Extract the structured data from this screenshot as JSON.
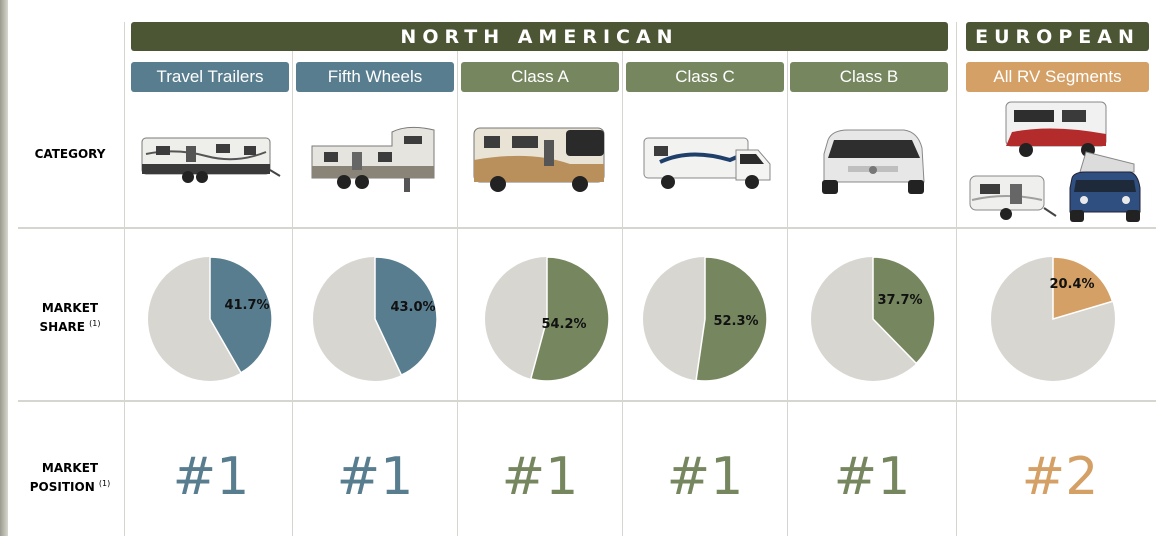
{
  "groups": {
    "north_american": "NORTH AMERICAN",
    "european": "EUROPEAN"
  },
  "row_labels": {
    "category": "CATEGORY",
    "market_share_1": "MARKET",
    "market_share_2": "SHARE",
    "market_position_1": "MARKET",
    "market_position_2": "POSITION",
    "footnote": "(1)"
  },
  "colors": {
    "blue": "#587d8f",
    "green": "#768760",
    "orange": "#d4a066",
    "dark_green": "#4c5635",
    "gray": "#d8d6d1"
  },
  "chart_data": {
    "type": "pie",
    "categories": [
      "Travel Trailers",
      "Fifth Wheels",
      "Class A",
      "Class C",
      "Class B",
      "All RV Segments"
    ],
    "values": [
      41.7,
      43.0,
      54.2,
      52.3,
      37.7,
      20.4
    ],
    "value_labels": [
      "41.7%",
      "43.0%",
      "54.2%",
      "52.3%",
      "37.7%",
      "20.4%"
    ],
    "market_position": [
      "#1",
      "#1",
      "#1",
      "#1",
      "#1",
      "#2"
    ],
    "segment_colors": [
      "#587d8f",
      "#587d8f",
      "#768760",
      "#768760",
      "#768760",
      "#d4a066"
    ],
    "remainder_color": "#d8d6d1"
  }
}
